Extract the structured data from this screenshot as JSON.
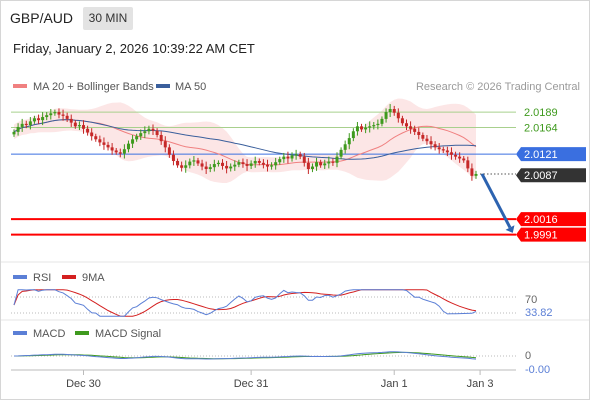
{
  "header": {
    "pair": "GBP/AUD",
    "timeframe": "30 MIN",
    "datetime": "Friday, January 2, 2026 10:39:22 AM CET",
    "credit": "Research © 2026 Trading Central"
  },
  "colors": {
    "candle_up": "#3f9a1e",
    "candle_down": "#c62828",
    "ma20": "#f08080",
    "bollinger_fill": "#fbe2e2",
    "ma50": "#3a5f9c",
    "resistance_line": "#a8d08d",
    "current_line": "#3a6fe0",
    "support_line": "#ff0000",
    "rsi": "#5b7fd6",
    "rsi_ma": "#d42020",
    "macd": "#5b7fd6",
    "macd_signal": "#3f9a1e",
    "forecast_arrow": "#2d63b0"
  },
  "chart_data": [
    {
      "type": "candlestick",
      "panel": "price",
      "legend": [
        {
          "name": "MA 20 + Bollinger Bands",
          "color": "#f08080"
        },
        {
          "name": "MA 50",
          "color": "#3a5f9c"
        }
      ],
      "legend_position": "top-left",
      "ylim": [
        1.995,
        2.0215
      ],
      "x_ticks": [
        {
          "label": "Dec 30",
          "index": 17
        },
        {
          "label": "Dec 31",
          "index": 58
        },
        {
          "label": "Jan 1",
          "index": 93
        },
        {
          "label": "Jan 3",
          "index": 114
        }
      ],
      "levels": [
        {
          "value": "2.0189",
          "role": "resistance-2",
          "style": "green-line"
        },
        {
          "value": "2.0164",
          "role": "resistance-1",
          "style": "green-line"
        },
        {
          "value": "2.0121",
          "role": "pivot",
          "style": "blue-tag"
        },
        {
          "value": "2.0087",
          "role": "last-price",
          "style": "dark-tag"
        },
        {
          "value": "2.0016",
          "role": "support-1",
          "style": "red-tag"
        },
        {
          "value": "1.9991",
          "role": "support-2",
          "style": "red-tag"
        }
      ],
      "forecast": {
        "direction": "down",
        "from": 2.0089,
        "to": 1.9996
      },
      "close": [
        2.0157,
        2.0165,
        2.017,
        2.0168,
        2.0174,
        2.0179,
        2.0176,
        2.0181,
        2.0184,
        2.0187,
        2.0189,
        2.0185,
        2.0183,
        2.0178,
        2.0172,
        2.0166,
        2.0168,
        2.0162,
        2.0156,
        2.015,
        2.0145,
        2.014,
        2.0136,
        2.0132,
        2.0127,
        2.0124,
        2.0122,
        2.0129,
        2.0138,
        2.0145,
        2.015,
        2.0155,
        2.0158,
        2.0162,
        2.0159,
        2.0152,
        2.0142,
        2.0132,
        2.012,
        2.011,
        2.0103,
        2.0099,
        2.0103,
        2.0109,
        2.0111,
        2.0106,
        2.0101,
        2.0097,
        2.01,
        2.0105,
        2.0107,
        2.0102,
        2.0098,
        2.0101,
        2.0104,
        2.0108,
        2.0105,
        2.0102,
        2.0106,
        2.011,
        2.0107,
        2.0104,
        2.0101,
        2.0103,
        2.0108,
        2.0113,
        2.0117,
        2.0114,
        2.0119,
        2.0121,
        2.0117,
        2.0107,
        2.0097,
        2.0101,
        2.0108,
        2.0103,
        2.0106,
        2.0109,
        2.0107,
        2.0117,
        2.0128,
        2.0137,
        2.0147,
        2.0158,
        2.0166,
        2.0161,
        2.0164,
        2.0166,
        2.0168,
        2.017,
        2.0178,
        2.0189,
        2.0194,
        2.0188,
        2.0179,
        2.0171,
        2.0166,
        2.0162,
        2.0157,
        2.0152,
        2.0146,
        2.0142,
        2.0137,
        2.0132,
        2.0129,
        2.0127,
        2.0124,
        2.012,
        2.0117,
        2.0114,
        2.0111,
        2.0098,
        2.0086,
        2.0089
      ]
    },
    {
      "type": "line",
      "panel": "rsi",
      "legend": [
        {
          "name": "RSI",
          "color": "#5b7fd6"
        },
        {
          "name": "9MA",
          "color": "#d42020"
        }
      ],
      "tick_labels": [
        "70"
      ],
      "current_value": "33.82"
    },
    {
      "type": "line",
      "panel": "macd",
      "legend": [
        {
          "name": "MACD",
          "color": "#5b7fd6"
        },
        {
          "name": "MACD Signal",
          "color": "#3f9a1e"
        }
      ],
      "tick_labels": [
        "0"
      ],
      "current_value": "-0.00"
    }
  ]
}
